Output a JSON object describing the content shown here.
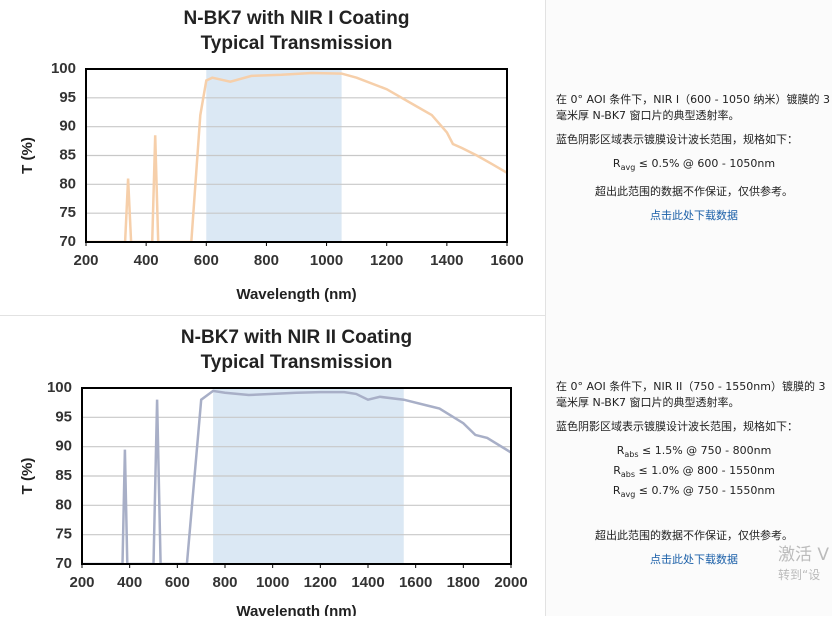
{
  "chart_data": [
    {
      "type": "line",
      "title": [
        "N-BK7 with NIR I Coating",
        "Typical Transmission"
      ],
      "x_label": "Wavelength (nm)",
      "y_label": "T (%)",
      "x": [
        200,
        330,
        340,
        350,
        420,
        430,
        440,
        550,
        580,
        600,
        620,
        680,
        750,
        850,
        950,
        1050,
        1100,
        1200,
        1300,
        1350,
        1400,
        1420,
        1450,
        1500,
        1550,
        1600
      ],
      "series": [
        {
          "color": "#f6cfaa",
          "values": [
            70,
            70,
            81,
            70,
            70,
            88.5,
            70,
            70,
            92,
            98,
            98.5,
            97.8,
            98.8,
            99,
            99.3,
            99.2,
            98.5,
            96.5,
            93.5,
            92,
            89,
            87,
            86.3,
            85,
            83.5,
            82
          ]
        }
      ],
      "shaded_range": [
        600,
        1050
      ],
      "shade_color": "#dbe8f4",
      "xlim": [
        200,
        1600
      ],
      "xticks": [
        200,
        400,
        600,
        800,
        1000,
        1200,
        1400,
        1600
      ],
      "ylim": [
        70,
        100
      ],
      "yticks": [
        70,
        75,
        80,
        85,
        90,
        95,
        100
      ],
      "grid": true
    },
    {
      "type": "line",
      "title": [
        "N-BK7 with NIR II Coating",
        "Typical Transmission"
      ],
      "x_label": "Wavelength (nm)",
      "y_label": "T (%)",
      "x": [
        200,
        370,
        380,
        390,
        500,
        515,
        530,
        640,
        700,
        750,
        800,
        900,
        1000,
        1100,
        1200,
        1300,
        1350,
        1400,
        1450,
        1550,
        1650,
        1700,
        1800,
        1850,
        1900,
        2000
      ],
      "series": [
        {
          "color": "#a8afc7",
          "values": [
            70,
            70,
            89.5,
            70,
            70,
            98,
            70,
            70,
            98,
            99.5,
            99.2,
            98.8,
            99,
            99.2,
            99.3,
            99.3,
            99,
            98,
            98.5,
            98,
            97,
            96.5,
            94,
            92,
            91.5,
            89
          ]
        }
      ],
      "shaded_range": [
        750,
        1550
      ],
      "shade_color": "#dbe8f4",
      "xlim": [
        200,
        2000
      ],
      "xticks": [
        200,
        400,
        600,
        800,
        1000,
        1200,
        1400,
        1600,
        1800,
        2000
      ],
      "ylim": [
        70,
        100
      ],
      "yticks": [
        70,
        75,
        80,
        85,
        90,
        95,
        100
      ],
      "grid": true
    }
  ],
  "rows": [
    {
      "intro": "在 0° AOI 条件下，NIR I（600 - 1050 纳米）镀膜的 3 毫米厚 N-BK7 窗口片的典型透射率。",
      "shade_note": "蓝色阴影区域表示镀膜设计波长范围，规格如下：",
      "specs": [
        {
          "symbol": "R",
          "sub": "avg",
          "text": "≤ 0.5% @ 600 - 1050nm"
        }
      ],
      "disclaimer": "超出此范围的数据不作保证，仅供参考。",
      "link": "点击此处下载数据"
    },
    {
      "intro": "在 0° AOI 条件下，NIR II（750 - 1550nm）镀膜的 3 毫米厚 N-BK7 窗口片的典型透射率。",
      "shade_note": "蓝色阴影区域表示镀膜设计波长范围，规格如下：",
      "specs": [
        {
          "symbol": "R",
          "sub": "abs",
          "text": "≤ 1.5% @ 750 - 800nm"
        },
        {
          "symbol": "R",
          "sub": "abs",
          "text": "≤ 1.0% @ 800 - 1550nm"
        },
        {
          "symbol": "R",
          "sub": "avg",
          "text": "≤ 0.7% @ 750 - 1550nm"
        }
      ],
      "disclaimer": "超出此范围的数据不作保证，仅供参考。",
      "link": "点击此处下载数据"
    }
  ],
  "watermark": [
    "激活 V",
    "转到“设"
  ]
}
